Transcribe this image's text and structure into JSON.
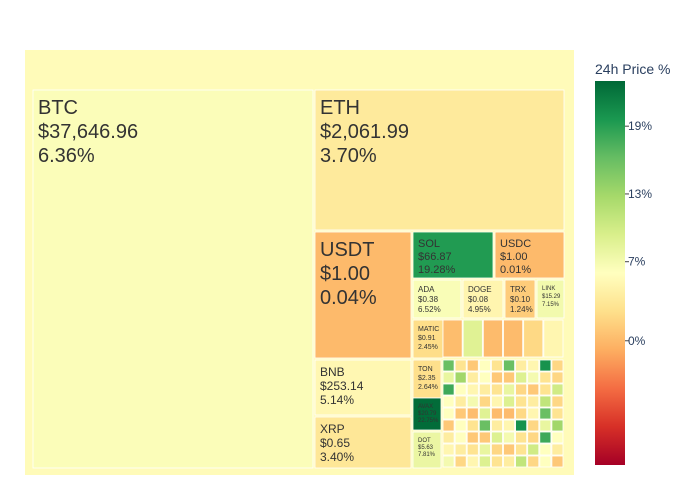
{
  "chart_data": {
    "type": "treemap",
    "root_change_pct": 5.6,
    "major": [
      {
        "symbol": "BTC",
        "price": "$37,646.96",
        "change_label": "6.36%",
        "change": 6.36
      },
      {
        "symbol": "ETH",
        "price": "$2,061.99",
        "change_label": "3.70%",
        "change": 3.7
      },
      {
        "symbol": "USDT",
        "price": "$1.00",
        "change_label": "0.04%",
        "change": 0.04
      },
      {
        "symbol": "SOL",
        "price": "$66.87",
        "change_label": "19.28%",
        "change": 19.28
      },
      {
        "symbol": "USDC",
        "price": "$1.00",
        "change_label": "0.01%",
        "change": 0.01
      },
      {
        "symbol": "ADA",
        "price": "$0.38",
        "change_label": "6.52%",
        "change": 6.52
      },
      {
        "symbol": "DOGE",
        "price": "$0.08",
        "change_label": "4.95%",
        "change": 4.95
      },
      {
        "symbol": "TRX",
        "price": "$0.10",
        "change_label": "1.24%",
        "change": 1.24
      },
      {
        "symbol": "LINK",
        "price": "$15.29",
        "change_label": "7.15%",
        "change": 7.15
      },
      {
        "symbol": "MATIC",
        "price": "$0.91",
        "change_label": "2.45%",
        "change": 2.45
      },
      {
        "symbol": "BNB",
        "price": "$253.14",
        "change_label": "5.14%",
        "change": 5.14
      },
      {
        "symbol": "TON",
        "price": "$2.35",
        "change_label": "2.64%",
        "change": 2.64
      },
      {
        "symbol": "AVAX",
        "price": "$20.79",
        "change_label": "22.75%",
        "change": 22.75
      },
      {
        "symbol": "XRP",
        "price": "$0.65",
        "change_label": "3.40%",
        "change": 3.4
      },
      {
        "symbol": "DOT",
        "price": "$5.63",
        "change_label": "7.81%",
        "change": 7.81
      }
    ],
    "minor_tiles": [
      0.2,
      8.8,
      0.1,
      0.1,
      2.1,
      5.0,
      16.0,
      3.0,
      1.0,
      6.0,
      3.0,
      16.0,
      4.0,
      5.0,
      20.0,
      2.0,
      8.0,
      13.0,
      4.0,
      6.0,
      1.0,
      1.0,
      9.0,
      7.0,
      3.0,
      2.0,
      18.0,
      6.0,
      5.0,
      4.0,
      3.0,
      8.0,
      2.0,
      1.0,
      3.0,
      10.0,
      6.0,
      4.0,
      7.0,
      2.0,
      5.0,
      9.0,
      3.0,
      4.0,
      11.0,
      2.0,
      6.0,
      1.0
    ],
    "colorscale": "RdYlGn",
    "color_range": [
      -11.0,
      23.0
    ],
    "colorbar": {
      "title": "24h Price %",
      "ticks": [
        {
          "value": 0,
          "label": "0%"
        },
        {
          "value": 7,
          "label": "7%"
        },
        {
          "value": 13,
          "label": "13%"
        },
        {
          "value": 19,
          "label": "19%"
        }
      ]
    }
  }
}
